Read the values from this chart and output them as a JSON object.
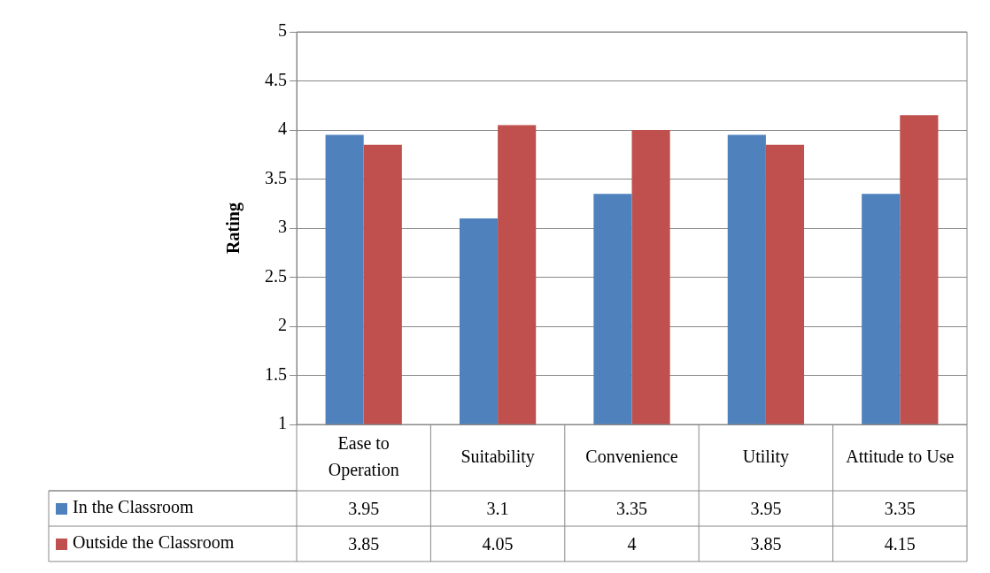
{
  "chart_data": {
    "type": "bar",
    "ylabel": "Rating",
    "categories": [
      "Ease to Operation",
      "Suitability",
      "Convenience",
      "Utility",
      "Attitude to Use"
    ],
    "series": [
      {
        "name": "In the Classroom",
        "color": "#4f81bd",
        "values": [
          3.95,
          3.1,
          3.35,
          3.95,
          3.35
        ]
      },
      {
        "name": "Outside the Classroom",
        "color": "#c0504d",
        "values": [
          3.85,
          4.05,
          4,
          3.85,
          4.15
        ]
      }
    ],
    "ylim": [
      1,
      5
    ],
    "yticks": [
      1,
      1.5,
      2,
      2.5,
      3,
      3.5,
      4,
      4.5,
      5
    ],
    "grid": "y",
    "legend": "bottom",
    "data_labels": true
  }
}
